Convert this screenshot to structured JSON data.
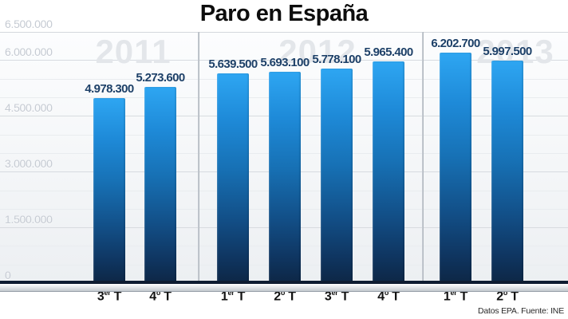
{
  "title": "Paro en España",
  "footer": {
    "source": "Datos EPA. Fuente: INE"
  },
  "chart_data": {
    "type": "bar",
    "title": "Paro en España",
    "xlabel": "",
    "ylabel": "",
    "ylim": [
      0,
      6500000
    ],
    "grid": true,
    "legend_position": "none",
    "yticks": [
      {
        "label": "6.500.000",
        "value": 6500000
      },
      {
        "label": "6.000.000",
        "value": 6000000
      },
      {
        "label": "4.500.000",
        "value": 4500000
      },
      {
        "label": "3.000.000",
        "value": 3000000
      },
      {
        "label": "1.500.000",
        "value": 1500000
      },
      {
        "label": "0",
        "value": 0
      }
    ],
    "groups": [
      {
        "year": "2011",
        "bars": [
          {
            "quarter": "3",
            "suffix": "er",
            "axis_label": "3er T",
            "value_label": "4.978.300",
            "value": 4978300
          },
          {
            "quarter": "4",
            "suffix": "o",
            "axis_label": "4º T",
            "value_label": "5.273.600",
            "value": 5273600
          }
        ]
      },
      {
        "year": "2012",
        "bars": [
          {
            "quarter": "1",
            "suffix": "er",
            "axis_label": "1er T",
            "value_label": "5.639.500",
            "value": 5639500
          },
          {
            "quarter": "2",
            "suffix": "o",
            "axis_label": "2º T",
            "value_label": "5.693.100",
            "value": 5693100
          },
          {
            "quarter": "3",
            "suffix": "er",
            "axis_label": "3er T",
            "value_label": "5.778.100",
            "value": 5778100
          },
          {
            "quarter": "4",
            "suffix": "o",
            "axis_label": "4º T",
            "value_label": "5.965.400",
            "value": 5965400
          }
        ]
      },
      {
        "year": "2013",
        "bars": [
          {
            "quarter": "1",
            "suffix": "er",
            "axis_label": "1er T",
            "value_label": "6.202.700",
            "value": 6202700
          },
          {
            "quarter": "2",
            "suffix": "o",
            "axis_label": "2º T",
            "value_label": "5.997.500",
            "value": 5997500
          }
        ]
      }
    ],
    "colors": {
      "bar_top": "#2ea6f2",
      "bar_bottom": "#0d2644",
      "value_label": "#1d4068",
      "tick_label": "#c6cbd3",
      "watermark": "#e3e6ea",
      "grid_major": "#d7dbe0",
      "grid_minor": "#e9ecef",
      "baseline": "#0e1c31",
      "title": "#0d0d0d"
    }
  }
}
